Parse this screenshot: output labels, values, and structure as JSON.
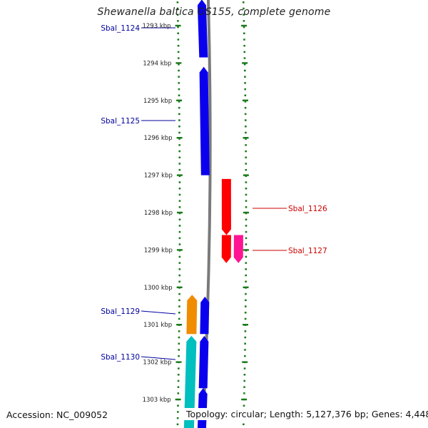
{
  "title": "Shewanella baltica OS155, complete genome",
  "footer": {
    "accession": "Accession: NC_009052",
    "summary": "Topology: circular; Length: 5,127,376 bp; Genes: 4,448"
  },
  "axis": {
    "ticks": [
      {
        "kbp": 1293,
        "label": "1293 kbp"
      },
      {
        "kbp": 1294,
        "label": "1294 kbp"
      },
      {
        "kbp": 1295,
        "label": "1295 kbp"
      },
      {
        "kbp": 1296,
        "label": "1296 kbp"
      },
      {
        "kbp": 1297,
        "label": "1297 kbp"
      },
      {
        "kbp": 1298,
        "label": "1298 kbp"
      },
      {
        "kbp": 1299,
        "label": "1299 kbp"
      },
      {
        "kbp": 1300,
        "label": "1300 kbp"
      },
      {
        "kbp": 1301,
        "label": "1301 kbp"
      },
      {
        "kbp": 1302,
        "label": "1302 kbp"
      },
      {
        "kbp": 1303,
        "label": "1303 kbp"
      }
    ]
  },
  "colors": {
    "gene_forward": "#0a00ee",
    "gene_reverse": "#ff0000",
    "gene_magenta": "#ff1493",
    "gene_orange": "#f08c00",
    "gene_cyan": "#00bfbf",
    "label_forward": "#00009e",
    "label_reverse": "#cc0000",
    "scale_green": "#1a7a1a",
    "backbone": "#7a7a7a"
  },
  "genes": [
    {
      "label": "Sbal_1124",
      "strand": "forward",
      "color": "gene_forward",
      "start_kbp": 1292.3,
      "end_kbp": 1293.85,
      "lane": "inner"
    },
    {
      "label": "Sbal_1125",
      "strand": "forward",
      "color": "gene_forward",
      "start_kbp": 1294.1,
      "end_kbp": 1297.0,
      "lane": "inner"
    },
    {
      "label": "Sbal_1126",
      "strand": "reverse",
      "color": "gene_reverse",
      "start_kbp": 1297.1,
      "end_kbp": 1298.6,
      "lane": "outer"
    },
    {
      "label": "",
      "strand": "reverse",
      "color": "gene_reverse",
      "start_kbp": 1298.6,
      "end_kbp": 1299.35,
      "lane": "outer"
    },
    {
      "label": "Sbal_1127",
      "strand": "reverse",
      "color": "gene_magenta",
      "start_kbp": 1298.6,
      "end_kbp": 1299.35,
      "lane": "outer2"
    },
    {
      "label": "Sbal_1129",
      "strand": "forward",
      "color": "gene_orange",
      "start_kbp": 1300.2,
      "end_kbp": 1301.25,
      "lane": "inner2"
    },
    {
      "label": "",
      "strand": "forward",
      "color": "gene_forward",
      "start_kbp": 1300.25,
      "end_kbp": 1301.25,
      "lane": "inner"
    },
    {
      "label": "Sbal_1130",
      "strand": "forward",
      "color": "gene_cyan",
      "start_kbp": 1301.3,
      "end_kbp": 1304.0,
      "lane": "inner2"
    },
    {
      "label": "",
      "strand": "forward",
      "color": "gene_forward",
      "start_kbp": 1301.3,
      "end_kbp": 1302.7,
      "lane": "inner"
    },
    {
      "label": "",
      "strand": "forward",
      "color": "gene_forward",
      "start_kbp": 1302.7,
      "end_kbp": 1304.0,
      "lane": "inner"
    }
  ]
}
